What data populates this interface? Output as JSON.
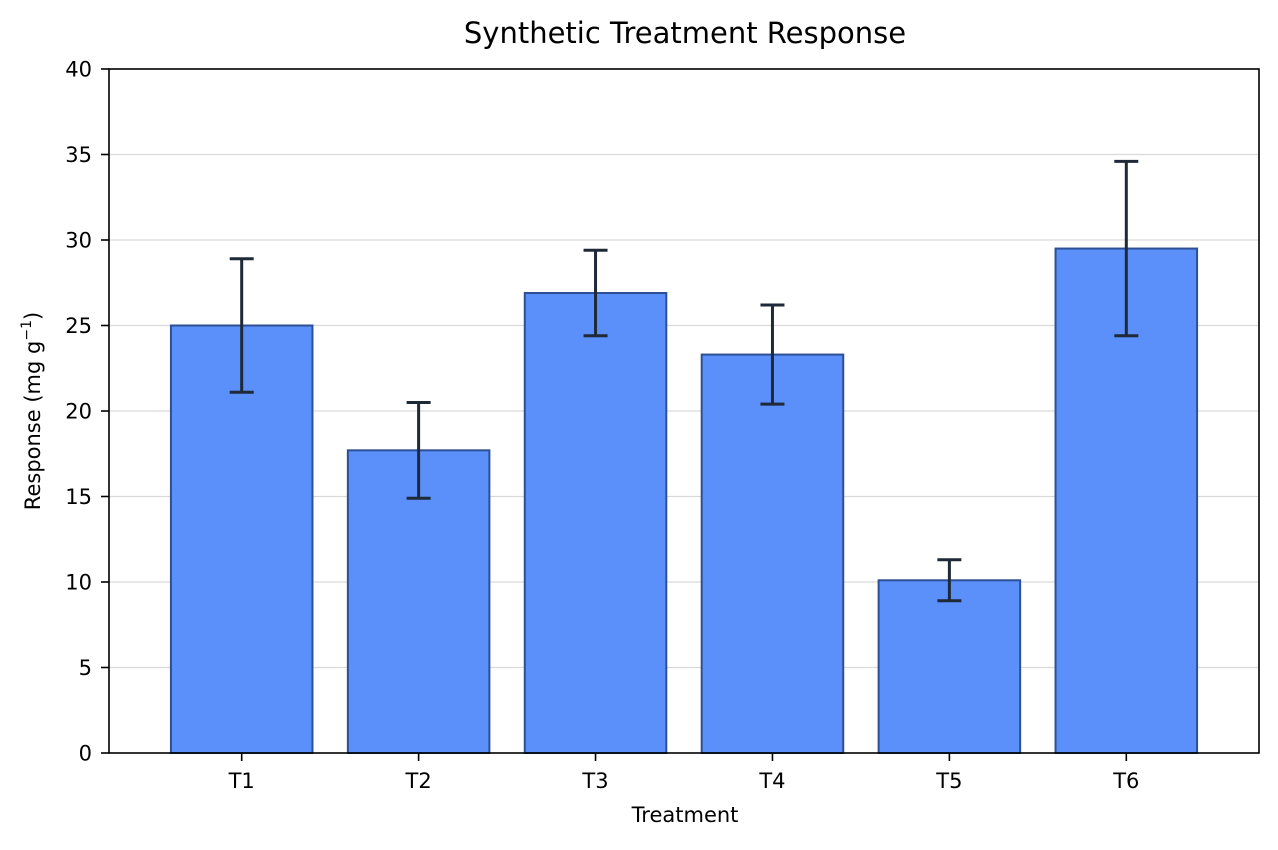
{
  "chart_data": {
    "type": "bar",
    "title": "Synthetic Treatment Response",
    "xlabel": "Treatment",
    "ylabel": {
      "main": "Response (mg g",
      "superscript": "−1",
      "close": ")"
    },
    "categories": [
      "T1",
      "T2",
      "T3",
      "T4",
      "T5",
      "T6"
    ],
    "values": [
      25.0,
      17.7,
      26.9,
      23.3,
      10.1,
      29.5
    ],
    "errors": [
      3.9,
      2.8,
      2.5,
      2.9,
      1.2,
      5.1
    ],
    "ylim": [
      0,
      40
    ],
    "yticks": [
      0,
      5,
      10,
      15,
      20,
      25,
      30,
      35,
      40
    ],
    "grid": "y",
    "legend": "none",
    "colors": {
      "bar_fill": "#5b8ff9",
      "bar_edge": "#2d4f94",
      "error_bar": "#1f2937",
      "grid": "#d9d9d9",
      "axis": "#000000"
    }
  }
}
